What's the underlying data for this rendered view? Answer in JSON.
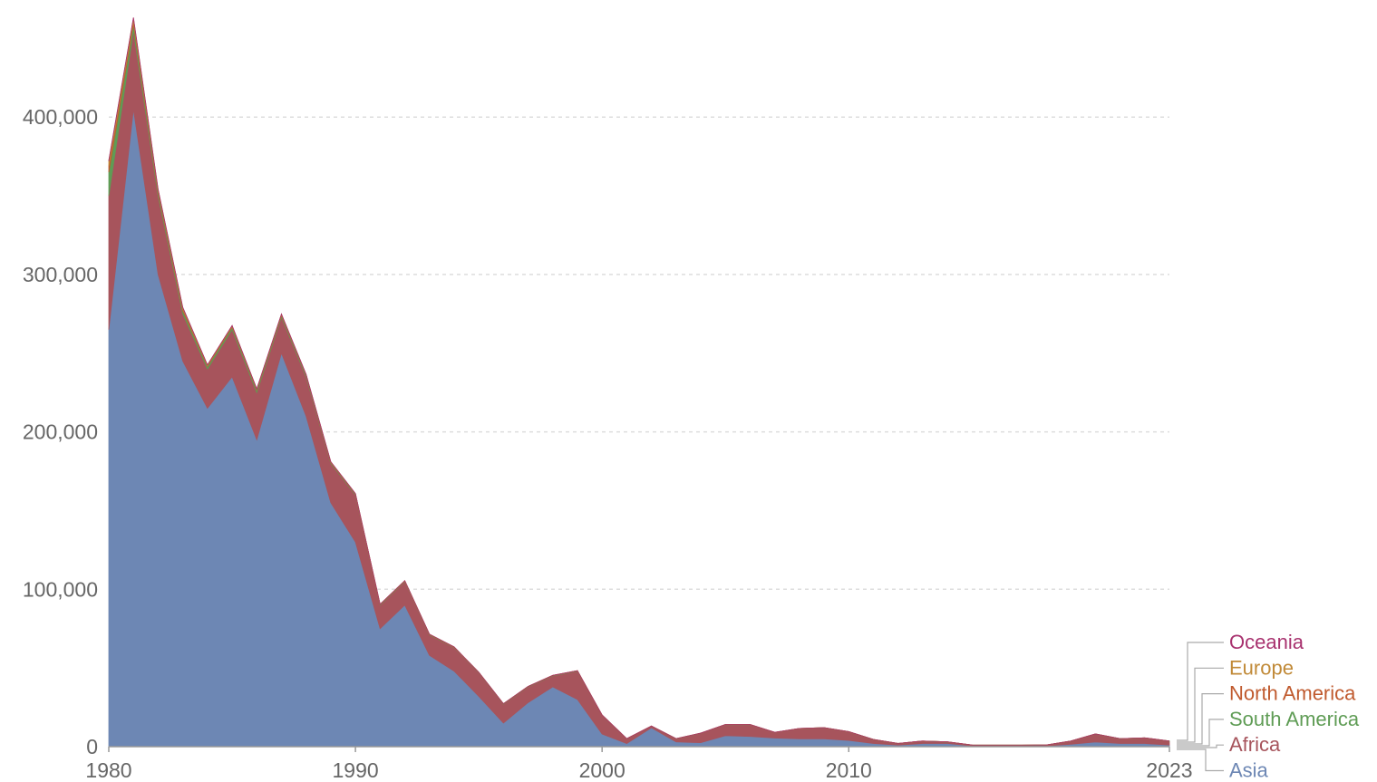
{
  "chart_data": {
    "type": "area",
    "stacked": true,
    "title": "",
    "xlabel": "",
    "ylabel": "",
    "ylim": [
      0,
      460000
    ],
    "xlim": [
      1980,
      2023
    ],
    "x_tick_labels": [
      {
        "value": 1980,
        "label": "1980"
      },
      {
        "value": 1990,
        "label": "1990"
      },
      {
        "value": 2000,
        "label": "2000"
      },
      {
        "value": 2010,
        "label": "2010"
      },
      {
        "value": 2023,
        "label": "2023"
      }
    ],
    "y_tick_labels": [
      {
        "value": 0,
        "label": "0"
      },
      {
        "value": 100000,
        "label": "100,000"
      },
      {
        "value": 200000,
        "label": "200,000"
      },
      {
        "value": 300000,
        "label": "300,000"
      },
      {
        "value": 400000,
        "label": "400,000"
      }
    ],
    "grid": "horizontal-dashed",
    "legend_placement": "right",
    "x": [
      1980,
      1981,
      1982,
      1983,
      1984,
      1985,
      1986,
      1987,
      1988,
      1989,
      1990,
      1991,
      1992,
      1993,
      1994,
      1995,
      1996,
      1997,
      1998,
      1999,
      2000,
      2001,
      2002,
      2003,
      2004,
      2005,
      2006,
      2007,
      2008,
      2009,
      2010,
      2011,
      2012,
      2013,
      2014,
      2015,
      2016,
      2017,
      2018,
      2019,
      2020,
      2021,
      2022,
      2023
    ],
    "series": [
      {
        "name": "Asia",
        "color": "#6d87b4",
        "values": [
          265000,
          405000,
          300000,
          245000,
          215000,
          235000,
          195000,
          250000,
          210000,
          155000,
          130000,
          75000,
          90000,
          58000,
          48000,
          32000,
          15000,
          28000,
          38000,
          30000,
          8000,
          2000,
          12000,
          3000,
          2500,
          7000,
          6500,
          5500,
          5000,
          5000,
          4000,
          2000,
          1000,
          2000,
          2000,
          500,
          400,
          400,
          500,
          1500,
          3000,
          2000,
          2000,
          1000
        ]
      },
      {
        "name": "Africa",
        "color": "#a7545c",
        "values": [
          85000,
          50000,
          50000,
          30000,
          25000,
          30000,
          30000,
          23000,
          25000,
          25000,
          30000,
          15000,
          15000,
          13000,
          15000,
          15000,
          12000,
          10000,
          7000,
          18000,
          12000,
          3000,
          1000,
          2000,
          6000,
          7000,
          7500,
          3500,
          6500,
          7000,
          5500,
          2500,
          1000,
          1500,
          1000,
          500,
          500,
          500,
          500,
          2000,
          5000,
          3000,
          3500,
          2500
        ]
      },
      {
        "name": "South America",
        "color": "#5f9c55",
        "values": [
          15000,
          4000,
          2000,
          2000,
          1500,
          1500,
          1500,
          1000,
          1000,
          500,
          500,
          300,
          300,
          300,
          200,
          200,
          200,
          200,
          200,
          200,
          100,
          100,
          100,
          100,
          100,
          100,
          100,
          100,
          100,
          100,
          100,
          100,
          100,
          100,
          100,
          100,
          100,
          100,
          100,
          100,
          100,
          100,
          100,
          100
        ]
      },
      {
        "name": "North America",
        "color": "#c05a2e",
        "values": [
          4000,
          2000,
          1000,
          1000,
          500,
          500,
          500,
          500,
          300,
          300,
          200,
          100,
          100,
          100,
          100,
          100,
          100,
          100,
          100,
          100,
          0,
          0,
          0,
          0,
          0,
          0,
          0,
          0,
          0,
          0,
          0,
          0,
          0,
          0,
          0,
          0,
          0,
          0,
          0,
          0,
          0,
          0,
          0,
          0
        ]
      },
      {
        "name": "Europe",
        "color": "#c18a38",
        "values": [
          3000,
          2000,
          1000,
          1000,
          500,
          500,
          300,
          300,
          200,
          200,
          100,
          100,
          100,
          100,
          100,
          0,
          0,
          0,
          0,
          0,
          0,
          0,
          0,
          0,
          0,
          0,
          0,
          0,
          0,
          0,
          0,
          0,
          0,
          0,
          0,
          0,
          0,
          0,
          0,
          0,
          0,
          0,
          0,
          0
        ]
      },
      {
        "name": "Oceania",
        "color": "#a8326f",
        "values": [
          500,
          300,
          200,
          200,
          100,
          100,
          100,
          100,
          100,
          100,
          0,
          0,
          0,
          0,
          0,
          0,
          0,
          0,
          0,
          0,
          0,
          0,
          0,
          0,
          0,
          0,
          0,
          0,
          0,
          0,
          0,
          0,
          0,
          0,
          0,
          0,
          0,
          0,
          0,
          0,
          0,
          0,
          0,
          0
        ]
      }
    ],
    "legend_order": [
      "Oceania",
      "Europe",
      "North America",
      "South America",
      "Africa",
      "Asia"
    ]
  }
}
